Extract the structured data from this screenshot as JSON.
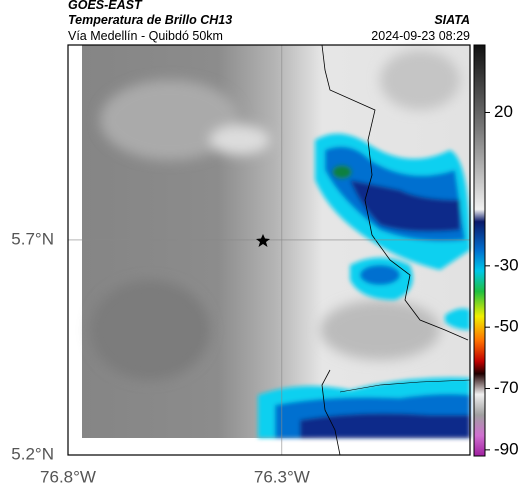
{
  "header": {
    "source": "GOES-EAST",
    "title": "Temperatura de Brillo CH13",
    "subtitle": "Vía Medellín - Quibdó 50km",
    "agency": "SIATA",
    "timestamp": "2024-09-23 08:29"
  },
  "map": {
    "xlim": [
      -76.8,
      -75.86
    ],
    "ylim": [
      5.2,
      6.153
    ],
    "xticks": [
      {
        "value": -76.8,
        "label": "76.8°W"
      },
      {
        "value": -76.3,
        "label": "76.3°W"
      }
    ],
    "yticks": [
      {
        "value": 5.7,
        "label": "5.7°N"
      },
      {
        "value": 5.2,
        "label": "5.2°N"
      }
    ]
  },
  "colorbar": {
    "lim": [
      42,
      -92
    ],
    "ticks": [
      20,
      -30,
      -50,
      -70,
      -90
    ]
  }
}
